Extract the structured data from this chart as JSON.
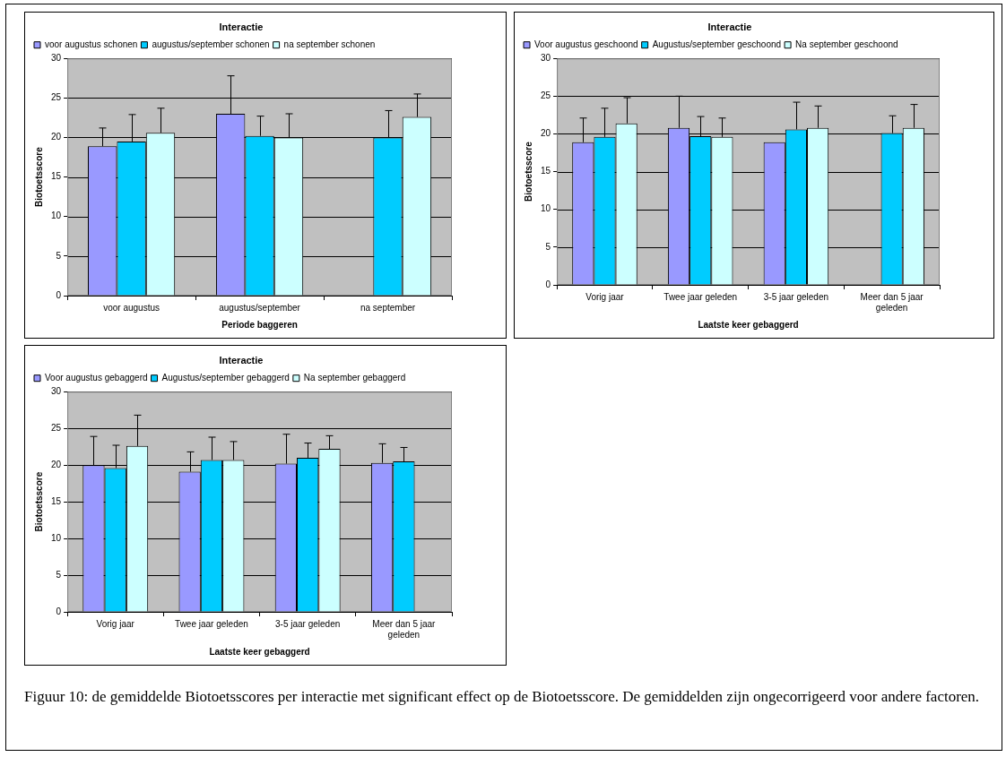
{
  "chart_data": [
    {
      "type": "bar",
      "title": "Interactie",
      "xlabel": "Periode baggeren",
      "ylabel": "Biotoetsscore",
      "categories": [
        "voor augustus",
        "augustus/september",
        "na september"
      ],
      "series": [
        {
          "name": "voor augustus schonen",
          "color": "#9999ff",
          "values": [
            18.9,
            23.0,
            null
          ],
          "errors": [
            [
              18.9,
              21.2
            ],
            [
              23.0,
              27.8
            ],
            null
          ]
        },
        {
          "name": "augustus/september schonen",
          "color": "#00ccff",
          "values": [
            19.5,
            20.2,
            20.0
          ],
          "errors": [
            [
              19.5,
              22.9
            ],
            [
              20.2,
              22.7
            ],
            [
              20.0,
              23.4
            ]
          ]
        },
        {
          "name": "na september schonen",
          "color": "#ccffff",
          "values": [
            20.6,
            20.0,
            22.6
          ],
          "errors": [
            [
              20.6,
              23.7
            ],
            [
              20.0,
              23.0
            ],
            [
              22.6,
              25.5
            ]
          ]
        }
      ],
      "ylim": [
        0,
        30
      ],
      "yticks": [
        0,
        5,
        10,
        15,
        20,
        25,
        30
      ],
      "grid": "y",
      "legend": "top",
      "annotations": [
        "Figuur 10: de gemiddelde Biotoetsscores per interactie met significant effect op de Biotoetsscore. De gemiddelden zijn ongecorrigeerd voor andere factoren."
      ]
    },
    {
      "type": "bar",
      "title": "Interactie",
      "xlabel": "Laatste keer gebaggerd",
      "ylabel": "Biotoetsscore",
      "categories": [
        "Vorig jaar",
        "Twee jaar geleden",
        "3-5 jaar geleden",
        "Meer dan 5 jaar geleden"
      ],
      "series": [
        {
          "name": "Voor augustus geschoond",
          "color": "#9999ff",
          "values": [
            18.9,
            20.8,
            18.9,
            null
          ],
          "errors": [
            [
              18.9,
              22.1
            ],
            [
              20.8,
              25.0
            ],
            null,
            null
          ]
        },
        {
          "name": "Augustus/september geschoond",
          "color": "#00ccff",
          "values": [
            19.6,
            19.7,
            20.6,
            20.1
          ],
          "errors": [
            [
              19.6,
              23.4
            ],
            [
              19.7,
              22.3
            ],
            [
              20.6,
              24.2
            ],
            [
              20.1,
              22.4
            ]
          ]
        },
        {
          "name": "Na september geschoond",
          "color": "#ccffff",
          "values": [
            21.4,
            19.6,
            20.8,
            20.8
          ],
          "errors": [
            [
              21.4,
              24.8
            ],
            [
              19.6,
              22.1
            ],
            [
              20.8,
              23.7
            ],
            [
              20.8,
              23.9
            ]
          ]
        }
      ],
      "ylim": [
        0,
        30
      ],
      "yticks": [
        0,
        5,
        10,
        15,
        20,
        25,
        30
      ],
      "grid": "y",
      "legend": "top"
    },
    {
      "type": "bar",
      "title": "Interactie",
      "xlabel": "Laatste keer gebaggerd",
      "ylabel": "Biotoetsscore",
      "categories": [
        "Vorig jaar",
        "Twee jaar geleden",
        "3-5 jaar geleden",
        "Meer dan 5 jaar geleden"
      ],
      "series": [
        {
          "name": "Voor augustus gebaggerd",
          "color": "#9999ff",
          "values": [
            20.0,
            19.1,
            20.2,
            20.3
          ],
          "errors": [
            [
              20.0,
              23.9
            ],
            [
              19.1,
              21.8
            ],
            [
              20.2,
              24.2
            ],
            [
              20.3,
              22.9
            ]
          ]
        },
        {
          "name": "Augustus/september gebaggerd",
          "color": "#00ccff",
          "values": [
            19.6,
            20.7,
            21.0,
            20.5
          ],
          "errors": [
            [
              19.6,
              22.7
            ],
            [
              20.7,
              23.8
            ],
            [
              21.0,
              23.0
            ],
            [
              20.5,
              22.4
            ]
          ]
        },
        {
          "name": "Na september gebaggerd",
          "color": "#ccffff",
          "values": [
            22.6,
            20.7,
            22.2,
            null
          ],
          "errors": [
            [
              22.6,
              26.8
            ],
            [
              20.7,
              23.2
            ],
            [
              22.2,
              24.0
            ],
            null
          ]
        }
      ],
      "ylim": [
        0,
        30
      ],
      "yticks": [
        0,
        5,
        10,
        15,
        20,
        25,
        30
      ],
      "grid": "y",
      "legend": "top"
    }
  ]
}
